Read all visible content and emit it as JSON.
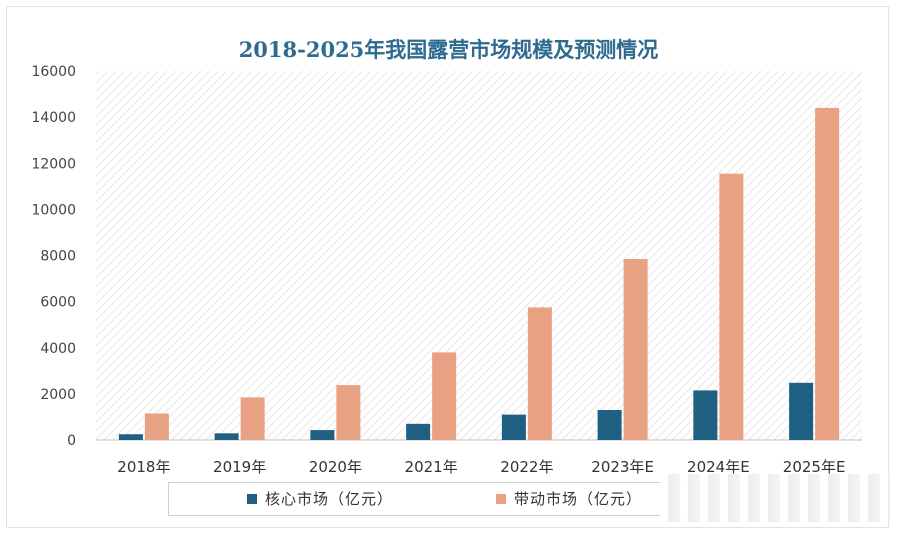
{
  "chart_data": {
    "type": "bar",
    "title": "2018-2025年我国露营市场规模及预测情况",
    "categories": [
      "2018年",
      "2019年",
      "2020年",
      "2021年",
      "2022年",
      "2023年E",
      "2024年E",
      "2025年E"
    ],
    "series": [
      {
        "name": "核心市场（亿元）",
        "color": "#1f5f82",
        "values": [
          250,
          290,
          430,
          700,
          1100,
          1300,
          2150,
          2480
        ]
      },
      {
        "name": "带动市场（亿元）",
        "color": "#e9a184",
        "values": [
          1150,
          1850,
          2380,
          3800,
          5750,
          7850,
          11550,
          14400
        ]
      }
    ],
    "ylim": [
      0,
      16000
    ],
    "yticks": [
      "0",
      "2000",
      "4000",
      "6000",
      "8000",
      "10000",
      "12000",
      "14000",
      "16000"
    ],
    "xlabel": "",
    "ylabel": "",
    "grid": false,
    "legend_position": "bottom",
    "plot_background": "diagonal-hatch"
  }
}
